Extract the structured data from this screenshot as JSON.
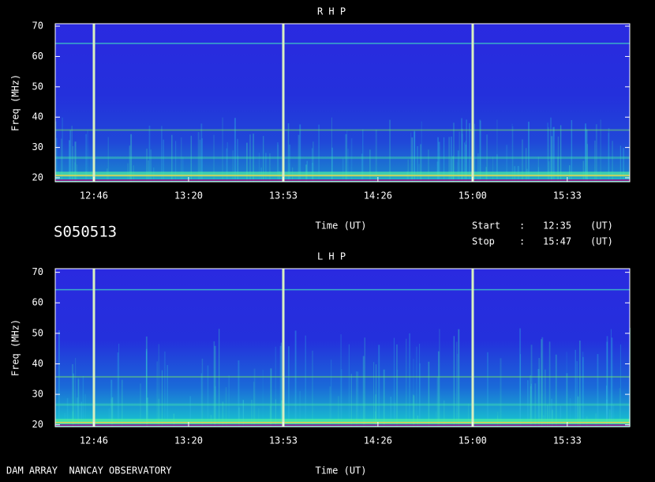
{
  "observation_id": "S050513",
  "start": {
    "label": "Start",
    "separator": ":",
    "time": "12:35",
    "unit": "(UT)"
  },
  "stop": {
    "label": "Stop",
    "separator": ":",
    "time": "15:47",
    "unit": "(UT)"
  },
  "footer": "DAM ARRAY  NANCAY OBSERVATORY",
  "chart_data": [
    {
      "type": "spectrogram",
      "title": "R H P",
      "y_label": "Freq (MHz)",
      "x_label": "Time (UT)",
      "xlim": [
        "12:33:04",
        "15:55:20"
      ],
      "xticks": [
        {
          "value": "12:46:40",
          "label": "12:46"
        },
        {
          "value": "13:20:00",
          "label": "13:20"
        },
        {
          "value": "13:53:20",
          "label": "13:53"
        },
        {
          "value": "14:26:40",
          "label": "14:26"
        },
        {
          "value": "15:00:00",
          "label": "15:00"
        },
        {
          "value": "15:33:20",
          "label": "15:33"
        }
      ],
      "ylim": [
        18.7,
        70.8
      ],
      "yticks": [
        20,
        30,
        40,
        50,
        60,
        70
      ]
    },
    {
      "type": "spectrogram",
      "title": "L H P",
      "y_label": "Freq (MHz)",
      "x_label": "Time (UT)",
      "xlim": [
        "12:33:04",
        "15:55:20"
      ],
      "xticks": [
        {
          "value": "12:46:40",
          "label": "12:46"
        },
        {
          "value": "13:20:00",
          "label": "13:20"
        },
        {
          "value": "13:53:20",
          "label": "13:53"
        },
        {
          "value": "14:26:40",
          "label": "14:26"
        },
        {
          "value": "15:00:00",
          "label": "15:00"
        },
        {
          "value": "15:33:20",
          "label": "15:33"
        }
      ],
      "ylim": [
        19.4,
        71.2
      ],
      "yticks": [
        20,
        30,
        40,
        50,
        60,
        70
      ]
    }
  ]
}
